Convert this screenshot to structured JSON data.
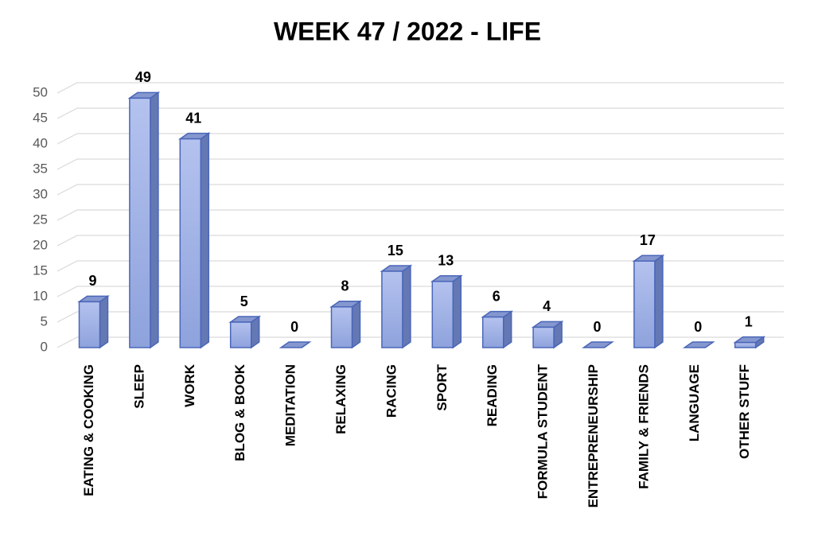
{
  "chart_data": {
    "type": "bar3d",
    "title": "WEEK 47 / 2022 - LIFE",
    "categories": [
      "EATING & COOKING",
      "SLEEP",
      "WORK",
      "BLOG & BOOK",
      "MEDITATION",
      "RELAXING",
      "RACING",
      "SPORT",
      "READING",
      "FORMULA STUDENT",
      "ENTREPRENEURSHIP",
      "FAMILY & FRIENDS",
      "LANGUAGE",
      "OTHER STUFF"
    ],
    "values": [
      9,
      49,
      41,
      5,
      0,
      8,
      15,
      13,
      6,
      4,
      0,
      17,
      0,
      1
    ],
    "color": "#9fb1e6",
    "ylim": [
      0,
      50
    ],
    "yticks": [
      0,
      5,
      10,
      15,
      20,
      25,
      30,
      35,
      40,
      45,
      50
    ],
    "grid": true
  }
}
